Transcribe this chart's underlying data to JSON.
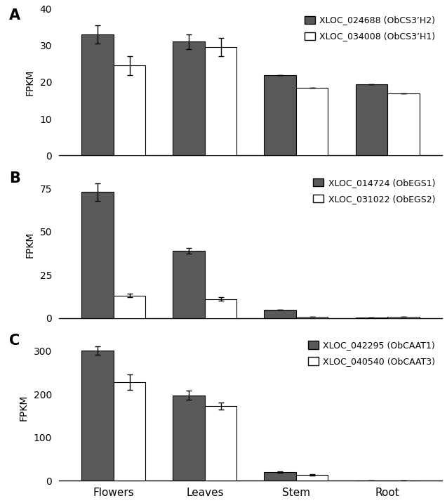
{
  "panels": [
    {
      "label": "A",
      "legend1": "XLOC_024688 (ObCS3’H2)",
      "legend2": "XLOC_034008 (ObCS3’H1)",
      "values1": [
        33.0,
        31.0,
        22.0,
        19.5
      ],
      "values2": [
        24.5,
        29.5,
        18.5,
        17.0
      ],
      "errors1": [
        2.5,
        2.0,
        0.0,
        0.0
      ],
      "errors2": [
        2.5,
        2.5,
        0.0,
        0.0
      ],
      "ylim": [
        0,
        40
      ],
      "yticks": [
        0,
        10,
        20,
        30,
        40
      ]
    },
    {
      "label": "B",
      "legend1": "XLOC_014724 (ObEGS1)",
      "legend2": "XLOC_031022 (ObEGS2)",
      "values1": [
        73.0,
        39.0,
        5.0,
        0.5
      ],
      "values2": [
        13.0,
        11.0,
        0.8,
        0.8
      ],
      "errors1": [
        5.0,
        1.5,
        0.0,
        0.0
      ],
      "errors2": [
        1.0,
        1.0,
        0.0,
        0.0
      ],
      "ylim": [
        0,
        85
      ],
      "yticks": [
        0,
        25,
        50,
        75
      ]
    },
    {
      "label": "C",
      "legend1": "XLOC_042295 (ObCAAT1)",
      "legend2": "XLOC_040540 (ObCAAT3)",
      "values1": [
        302.0,
        198.0,
        20.0,
        0.5
      ],
      "values2": [
        228.0,
        173.0,
        13.0,
        0.3
      ],
      "errors1": [
        10.0,
        10.0,
        2.0,
        0.0
      ],
      "errors2": [
        18.0,
        8.0,
        1.5,
        0.0
      ],
      "ylim": [
        0,
        340
      ],
      "yticks": [
        0,
        100,
        200,
        300
      ]
    }
  ],
  "categories": [
    "Flowers",
    "Leaves",
    "Stem",
    "Root"
  ],
  "bar_color1": "#595959",
  "bar_color2": "#ffffff",
  "bar_edgecolor": "#000000",
  "bar_width": 0.35,
  "ylabel": "FPKM",
  "background_color": "#ffffff",
  "error_capsize": 3,
  "error_color": "black",
  "error_linewidth": 1.0
}
